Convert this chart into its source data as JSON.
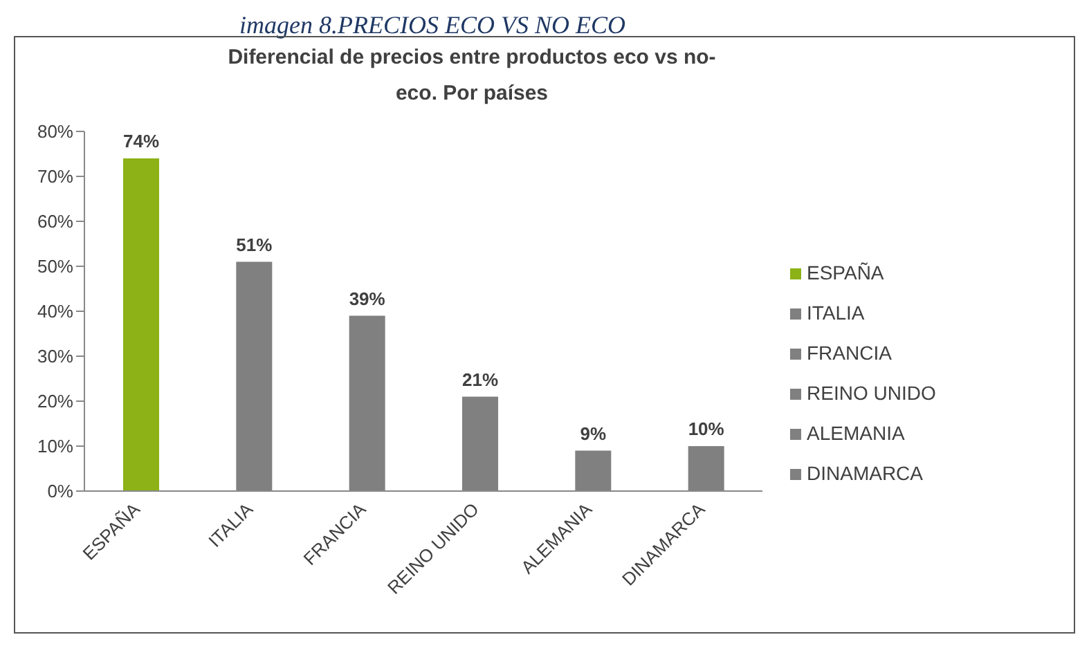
{
  "chart_data": {
    "type": "bar",
    "title": "Diferencial de precios entre productos eco vs no-eco. Por países",
    "annotations": [
      "imagen 8.PRECIOS ECO VS NO ECO"
    ],
    "categories": [
      "ESPAÑA",
      "ITALIA",
      "FRANCIA",
      "REINO UNIDO",
      "ALEMANIA",
      "DINAMARCA"
    ],
    "series": [
      {
        "name": "ESPAÑA",
        "color": "#8cb217",
        "values": [
          74,
          null,
          null,
          null,
          null,
          null
        ],
        "value_labels": [
          "74%",
          null,
          null,
          null,
          null,
          null
        ]
      },
      {
        "name": "ITALIA",
        "color": "#808080",
        "values": [
          null,
          51,
          null,
          null,
          null,
          null
        ],
        "value_labels": [
          null,
          "51%",
          null,
          null,
          null,
          null
        ]
      },
      {
        "name": "FRANCIA",
        "color": "#808080",
        "values": [
          null,
          null,
          39,
          null,
          null,
          null
        ],
        "value_labels": [
          null,
          null,
          "39%",
          null,
          null,
          null
        ]
      },
      {
        "name": "REINO UNIDO",
        "color": "#808080",
        "values": [
          null,
          null,
          null,
          21,
          null,
          null
        ],
        "value_labels": [
          null,
          null,
          null,
          "21%",
          null,
          null
        ]
      },
      {
        "name": "ALEMANIA",
        "color": "#808080",
        "values": [
          null,
          null,
          null,
          null,
          9,
          null
        ],
        "value_labels": [
          null,
          null,
          null,
          null,
          "9%",
          null
        ]
      },
      {
        "name": "DINAMARCA",
        "color": "#808080",
        "values": [
          null,
          null,
          null,
          null,
          null,
          10
        ],
        "value_labels": [
          null,
          null,
          null,
          null,
          null,
          "10%"
        ]
      }
    ],
    "stacked": true,
    "ylim": [
      0,
      80
    ],
    "yticks": [
      {
        "value": 0,
        "label": "0%"
      },
      {
        "value": 10,
        "label": "10%"
      },
      {
        "value": 20,
        "label": "20%"
      },
      {
        "value": 30,
        "label": "30%"
      },
      {
        "value": 40,
        "label": "40%"
      },
      {
        "value": 50,
        "label": "50%"
      },
      {
        "value": 60,
        "label": "60%"
      },
      {
        "value": 70,
        "label": "70%"
      },
      {
        "value": 80,
        "label": "80%"
      }
    ],
    "legend": "right"
  }
}
